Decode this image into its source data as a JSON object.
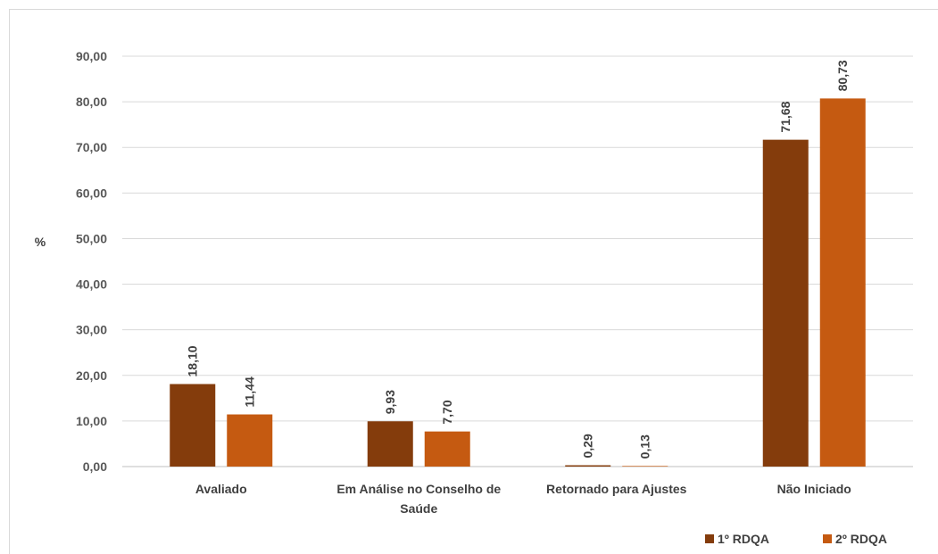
{
  "chart_data": {
    "type": "bar",
    "title": "",
    "xlabel": "",
    "ylabel": "%",
    "ylim": [
      0,
      90
    ],
    "ytick_step": 10,
    "yticks": [
      "0,00",
      "10,00",
      "20,00",
      "30,00",
      "40,00",
      "50,00",
      "60,00",
      "70,00",
      "80,00",
      "90,00"
    ],
    "grid": true,
    "legend_position": "bottom-right",
    "categories": [
      [
        "Avaliado"
      ],
      [
        "Em Análise no Conselho de",
        "Saúde"
      ],
      [
        "Retornado para Ajustes"
      ],
      [
        "Não Iniciado"
      ]
    ],
    "series": [
      {
        "name": "1º RDQA",
        "color": "#843c0c",
        "values": [
          18.1,
          9.93,
          0.29,
          71.68
        ],
        "labels": [
          "18,10",
          "9,93",
          "0,29",
          "71,68"
        ]
      },
      {
        "name": "2º RDQA",
        "color": "#c55a11",
        "values": [
          11.44,
          7.7,
          0.13,
          80.73
        ],
        "labels": [
          "11,44",
          "7,70",
          "0,13",
          "80,73"
        ]
      }
    ]
  }
}
